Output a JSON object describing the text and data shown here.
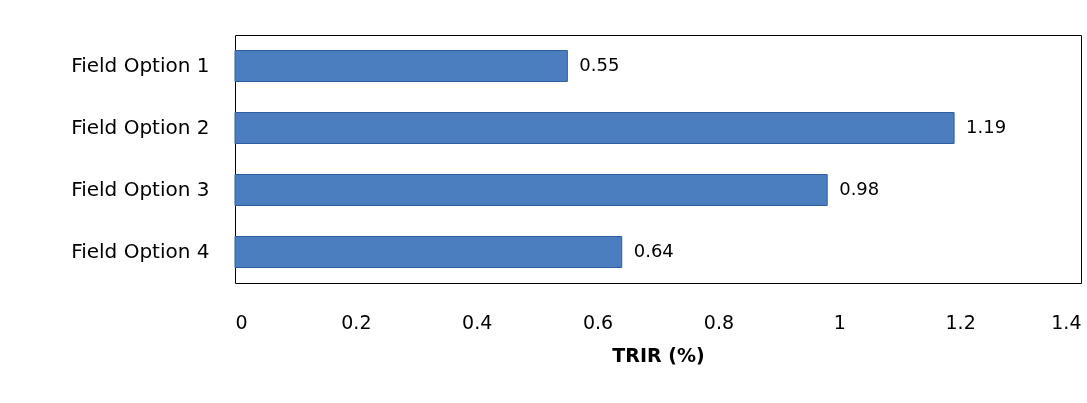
{
  "chart_data": {
    "type": "bar",
    "orientation": "horizontal",
    "categories": [
      "Field Option 1",
      "Field Option 2",
      "Field Option 3",
      "Field Option 4"
    ],
    "values": [
      0.55,
      1.19,
      0.98,
      0.64
    ],
    "color": "#4a7ebf",
    "xlabel": "TRIR (%)",
    "xlim": [
      0,
      1.4
    ],
    "xticks": [
      0,
      0.2,
      0.4,
      0.6,
      0.8,
      1,
      1.2,
      1.4
    ],
    "grid": false,
    "data_labels": true
  }
}
